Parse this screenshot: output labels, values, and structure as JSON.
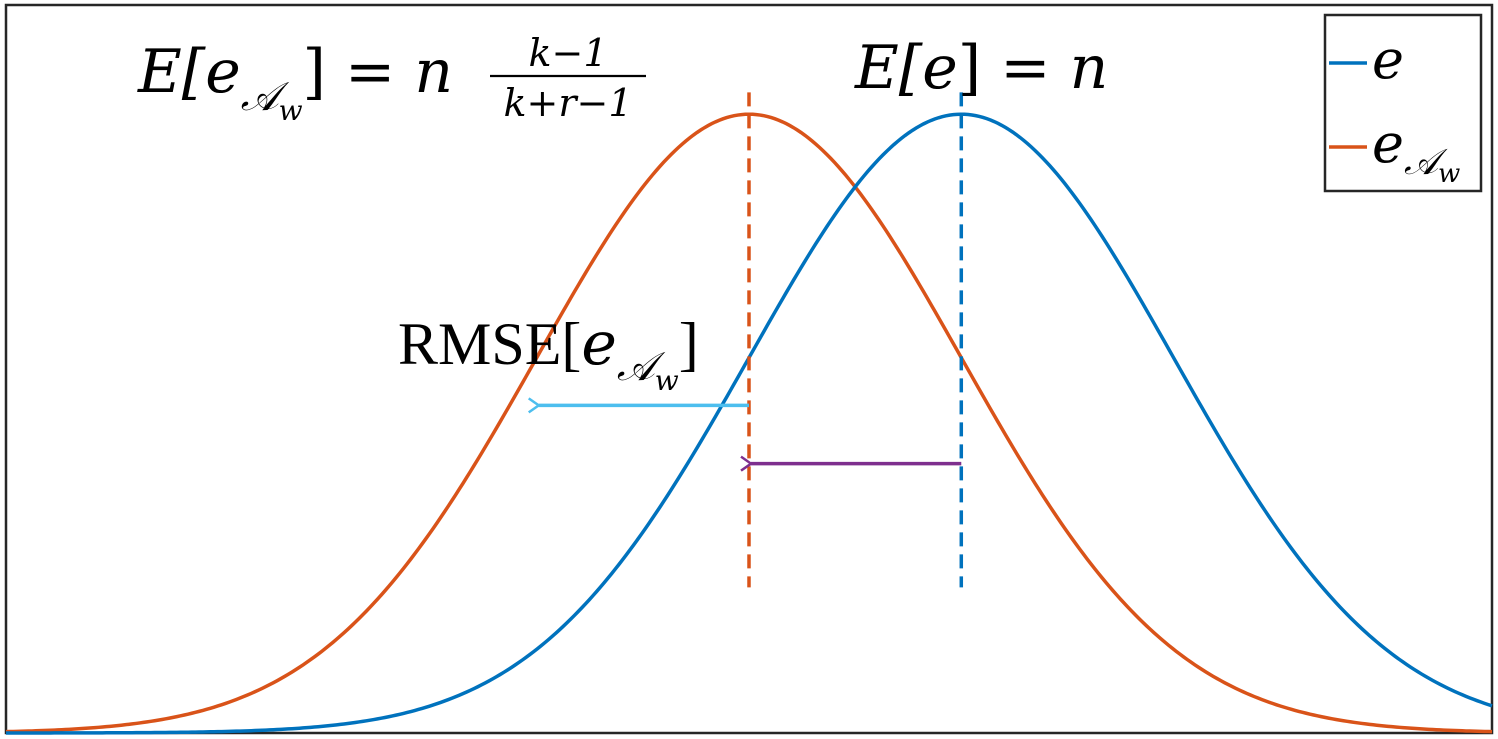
{
  "chart_data": {
    "type": "line",
    "title": "",
    "xlabel": "",
    "ylabel": "",
    "grid": false,
    "legend_position": "top-right",
    "xlim": [
      -3.5,
      3.5
    ],
    "ylim": [
      0,
      1.0
    ],
    "series": [
      {
        "name": "e",
        "kind": "gaussian",
        "mean": 1.0,
        "sd": 1.0,
        "peak": 0.85,
        "color": "#0072BD"
      },
      {
        "name": "e_{A_w}",
        "kind": "gaussian",
        "mean": 0.0,
        "sd": 1.0,
        "peak": 0.85,
        "color": "#D95319"
      }
    ],
    "reference_lines": [
      {
        "name": "mean-e",
        "x": 1.0,
        "style": "dashed",
        "color": "#0072BD"
      },
      {
        "name": "mean-e-aw",
        "x": 0.0,
        "style": "dashed",
        "color": "#D95319"
      }
    ],
    "arrows": [
      {
        "name": "rmse-arrow",
        "from_x": 0.0,
        "to_x": -1.0,
        "y": 0.45,
        "color": "#4DBEEE"
      },
      {
        "name": "bias-arrow",
        "from_x": 1.0,
        "to_x": 0.0,
        "y": 0.37,
        "color": "#7E2F8E"
      }
    ]
  },
  "annotations": {
    "left_mean": {
      "lhs": "E[",
      "var": "e",
      "sub": "𝒜",
      "subsub": "w",
      "rhs": "] = ",
      "n": "n",
      "num": "k−1",
      "den": "k+r−1"
    },
    "right_mean": {
      "lhs": "E[",
      "var": "e",
      "rhs": "] = ",
      "n": "n"
    },
    "rmse": {
      "text": "RMSE[",
      "var": "e",
      "sub": "𝒜",
      "subsub": "w",
      "close": "]"
    }
  },
  "legend": {
    "entries": [
      {
        "label": "e",
        "sub": "",
        "subsub": "",
        "color": "#0072BD"
      },
      {
        "label": "e",
        "sub": "𝒜",
        "subsub": "w",
        "color": "#D95319"
      }
    ]
  },
  "colors": {
    "axes": "#262626",
    "blue": "#0072BD",
    "orange": "#D95319",
    "cyan": "#4DBEEE",
    "purple": "#7E2F8E"
  }
}
